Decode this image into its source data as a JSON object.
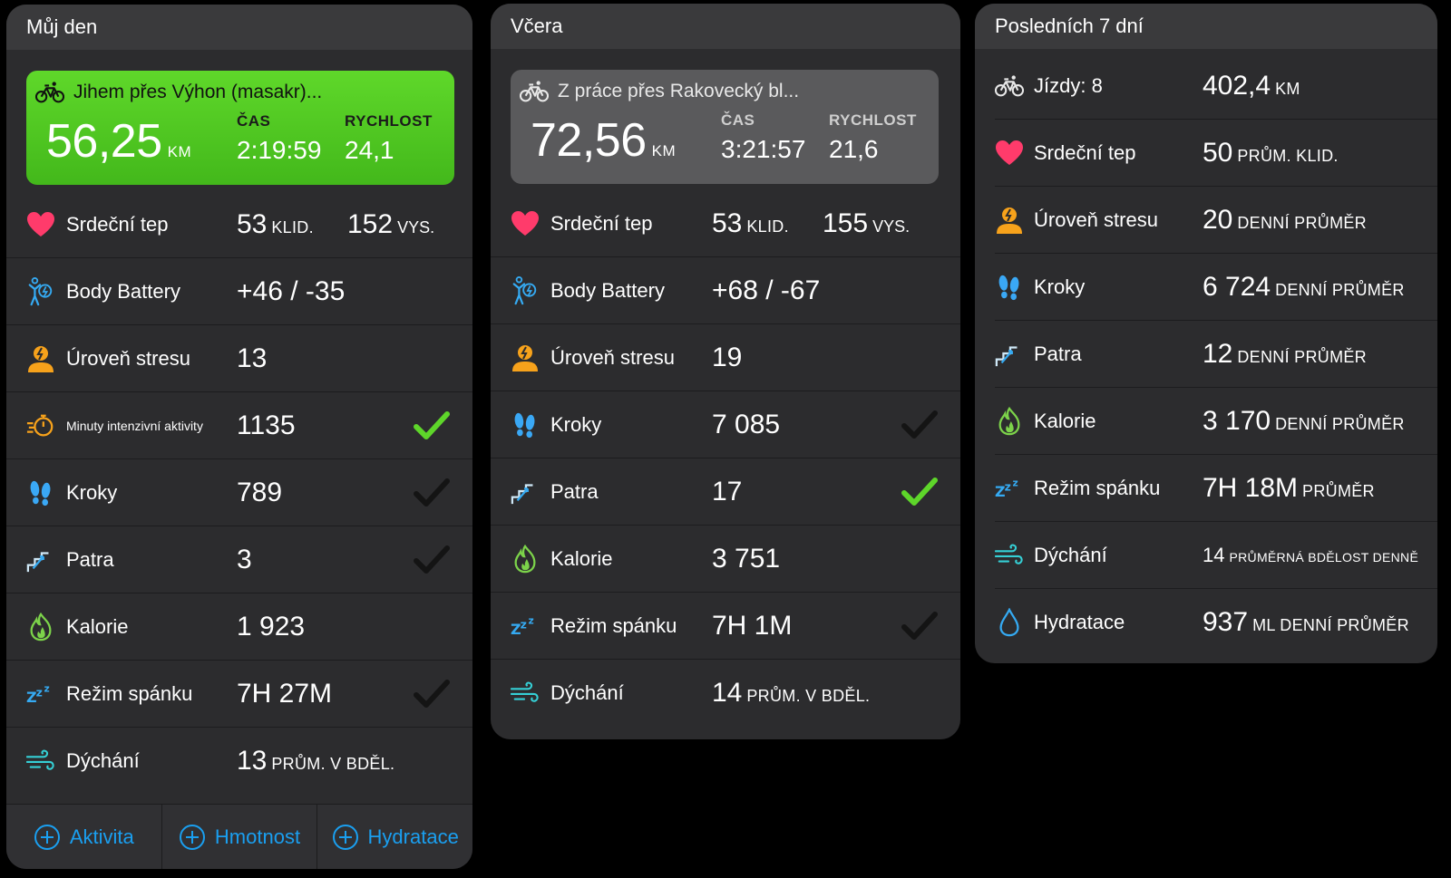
{
  "colors": {
    "accent_blue": "#1a9ff0",
    "green_card": "#4ec61f",
    "check_green": "#5ed62a",
    "heart": "#ff3b6b",
    "stress_orange": "#f7a21b",
    "calorie_green": "#7cd34a",
    "steps_blue": "#3aa8f5"
  },
  "panels": [
    {
      "title": "Můj den",
      "card": {
        "title": "Jihem přes Výhon (masakr)...",
        "distance": "56,25",
        "distance_unit": "KM",
        "time_label": "ČAS",
        "time": "2:19:59",
        "speed_label": "RYCHLOST",
        "speed": "24,1"
      },
      "rows": [
        {
          "name": "Srdeční tep",
          "icon": "heart-icon",
          "value": "53",
          "unit": "KLID.",
          "value2": "152",
          "unit2": "VYS."
        },
        {
          "name": "Body Battery",
          "icon": "body-battery-icon",
          "value": "+46 / -35"
        },
        {
          "name": "Úroveň stresu",
          "icon": "stress-icon",
          "value": "13"
        },
        {
          "name": "Minuty intenzivní aktivity",
          "icon": "intensity-minutes-icon",
          "value": "1135",
          "check": "green"
        },
        {
          "name": "Kroky",
          "icon": "steps-icon",
          "value": "789",
          "check": "dark"
        },
        {
          "name": "Patra",
          "icon": "floors-icon",
          "value": "3",
          "check": "dark"
        },
        {
          "name": "Kalorie",
          "icon": "calories-icon",
          "value": "1 923"
        },
        {
          "name": "Režim spánku",
          "icon": "sleep-icon",
          "value": "7H 27M",
          "check": "dark"
        },
        {
          "name": "Dýchání",
          "icon": "respiration-icon",
          "value": "13",
          "unit": "PRŮM. V BDĚL."
        }
      ],
      "footer": [
        "Aktivita",
        "Hmotnost",
        "Hydratace"
      ]
    },
    {
      "title": "Včera",
      "card": {
        "title": "Z práce přes Rakovecký bl...",
        "distance": "72,56",
        "distance_unit": "KM",
        "time_label": "ČAS",
        "time": "3:21:57",
        "speed_label": "RYCHLOST",
        "speed": "21,6"
      },
      "rows": [
        {
          "name": "Srdeční tep",
          "icon": "heart-icon",
          "value": "53",
          "unit": "KLID.",
          "value2": "155",
          "unit2": "VYS."
        },
        {
          "name": "Body Battery",
          "icon": "body-battery-icon",
          "value": "+68 / -67"
        },
        {
          "name": "Úroveň stresu",
          "icon": "stress-icon",
          "value": "19"
        },
        {
          "name": "Kroky",
          "icon": "steps-icon",
          "value": "7 085",
          "check": "dark"
        },
        {
          "name": "Patra",
          "icon": "floors-icon",
          "value": "17",
          "check": "green"
        },
        {
          "name": "Kalorie",
          "icon": "calories-icon",
          "value": "3 751"
        },
        {
          "name": "Režim spánku",
          "icon": "sleep-icon",
          "value": "7H 1M",
          "check": "dark"
        },
        {
          "name": "Dýchání",
          "icon": "respiration-icon",
          "value": "14",
          "unit": "PRŮM. V BDĚL."
        }
      ]
    },
    {
      "title": "Posledních 7 dní",
      "rows": [
        {
          "name": "Jízdy: 8",
          "icon": "bike-icon",
          "value": "402,4",
          "unit": "KM"
        },
        {
          "name": "Srdeční tep",
          "icon": "heart-icon",
          "value": "50",
          "unit": "PRŮM. KLID."
        },
        {
          "name": "Úroveň stresu",
          "icon": "stress-icon",
          "value": "20",
          "unit": "DENNÍ PRŮMĚR"
        },
        {
          "name": "Kroky",
          "icon": "steps-icon",
          "value": "6 724",
          "unit": "DENNÍ PRŮMĚR"
        },
        {
          "name": "Patra",
          "icon": "floors-icon",
          "value": "12",
          "unit": "DENNÍ PRŮMĚR"
        },
        {
          "name": "Kalorie",
          "icon": "calories-icon",
          "value": "3 170",
          "unit": "DENNÍ PRŮMĚR"
        },
        {
          "name": "Režim spánku",
          "icon": "sleep-icon",
          "value": "7H 18M",
          "unit": "PRŮMĚR"
        },
        {
          "name": "Dýchání",
          "icon": "respiration-icon",
          "value": "14",
          "unit": "PRŮMĚRNÁ BDĚLOST DENNĚ",
          "unit_small": true
        },
        {
          "name": "Hydratace",
          "icon": "hydration-icon",
          "value": "937",
          "unit": "ML DENNÍ PRŮMĚR"
        }
      ]
    }
  ]
}
